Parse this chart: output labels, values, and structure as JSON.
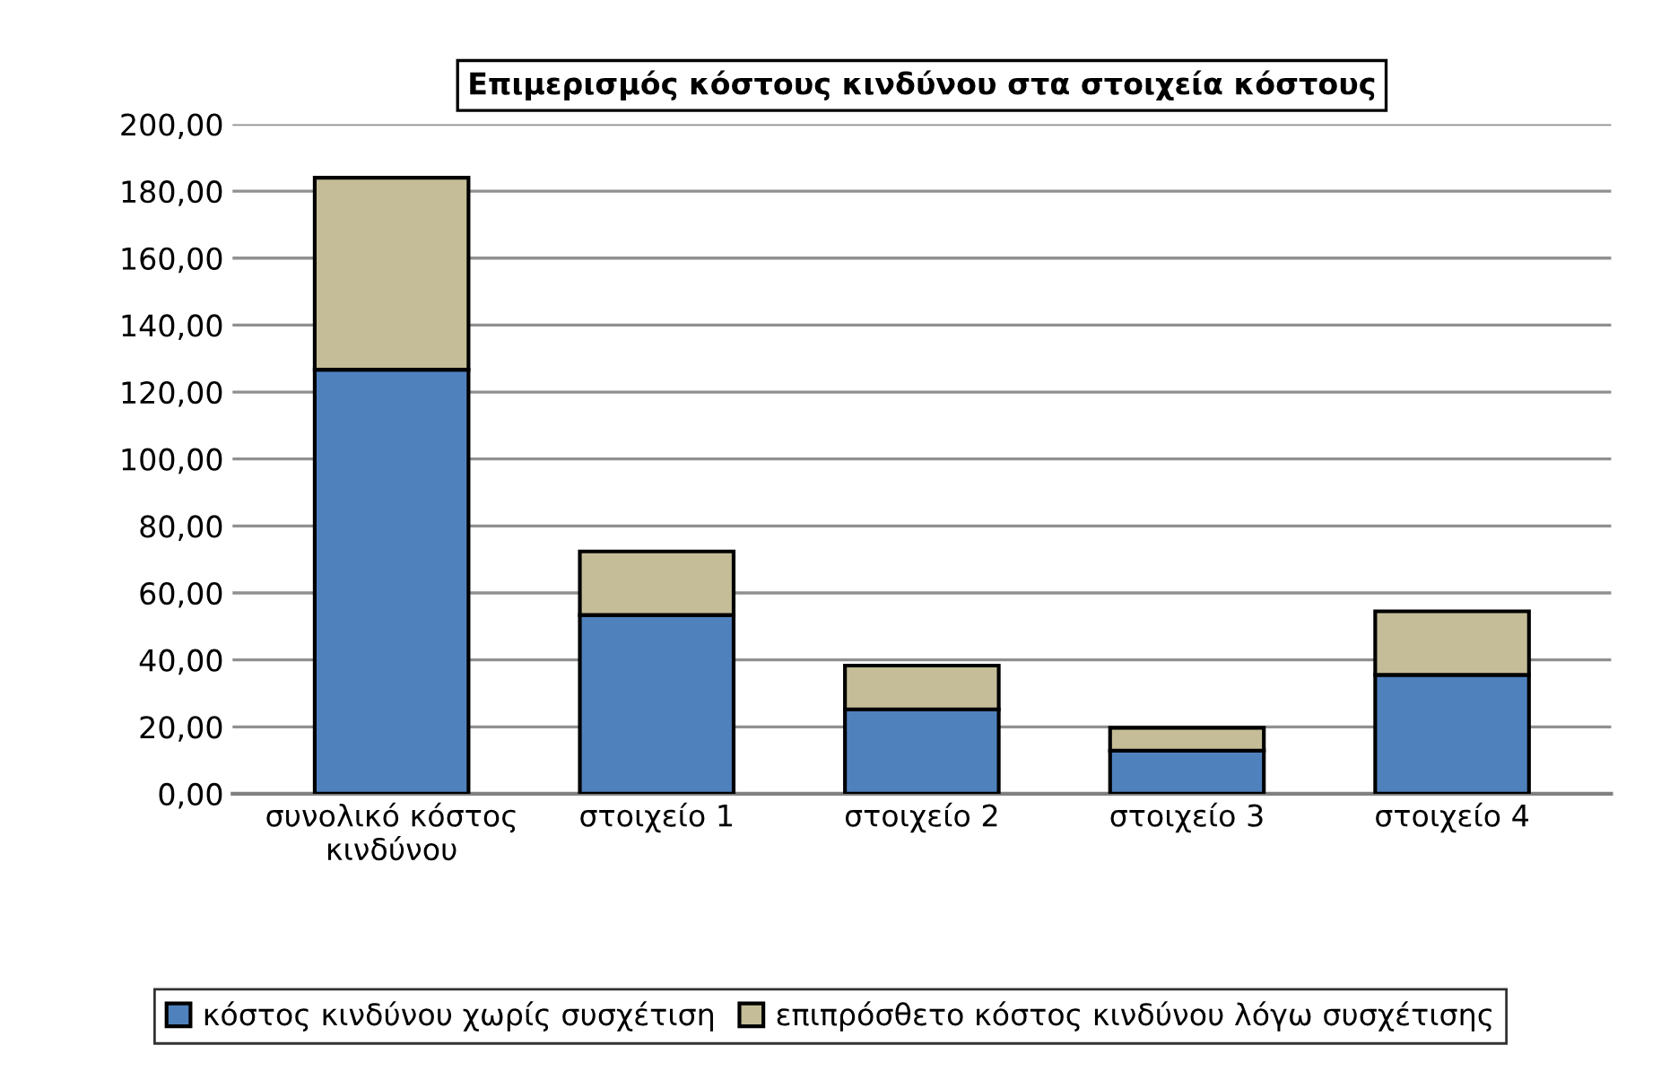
{
  "chart_data": {
    "type": "bar",
    "title": "Επιμερισμός κόστους κινδύνου στα στοιχεία κόστους",
    "categories": [
      "συνολικό κόστος\nκινδύνου",
      "στοιχείο 1",
      "στοιχείο 2",
      "στοιχείο 3",
      "στοιχείο 4"
    ],
    "stacked": true,
    "series": [
      {
        "name": "κόστος κινδύνου χωρίς συσχέτιση",
        "color": "#4f81bd",
        "values": [
          126.7,
          53.4,
          25.2,
          12.9,
          35.5
        ]
      },
      {
        "name": "επιπρόσθετο κόστος κινδύνου λόγω συσχέτισης",
        "color": "#c4bd97",
        "values": [
          57.3,
          19.0,
          13.1,
          6.8,
          19.0
        ]
      }
    ],
    "ylim": [
      0,
      200
    ],
    "yticks": [
      {
        "value": 0,
        "label": "0,00"
      },
      {
        "value": 20,
        "label": "20,00"
      },
      {
        "value": 40,
        "label": "40,00"
      },
      {
        "value": 60,
        "label": "60,00"
      },
      {
        "value": 80,
        "label": "80,00"
      },
      {
        "value": 100,
        "label": "100,00"
      },
      {
        "value": 120,
        "label": "120,00"
      },
      {
        "value": 140,
        "label": "140,00"
      },
      {
        "value": 160,
        "label": "160,00"
      },
      {
        "value": 180,
        "label": "180,00"
      },
      {
        "value": 200,
        "label": "200,00"
      }
    ],
    "grid": "y",
    "legend": "bottom"
  }
}
